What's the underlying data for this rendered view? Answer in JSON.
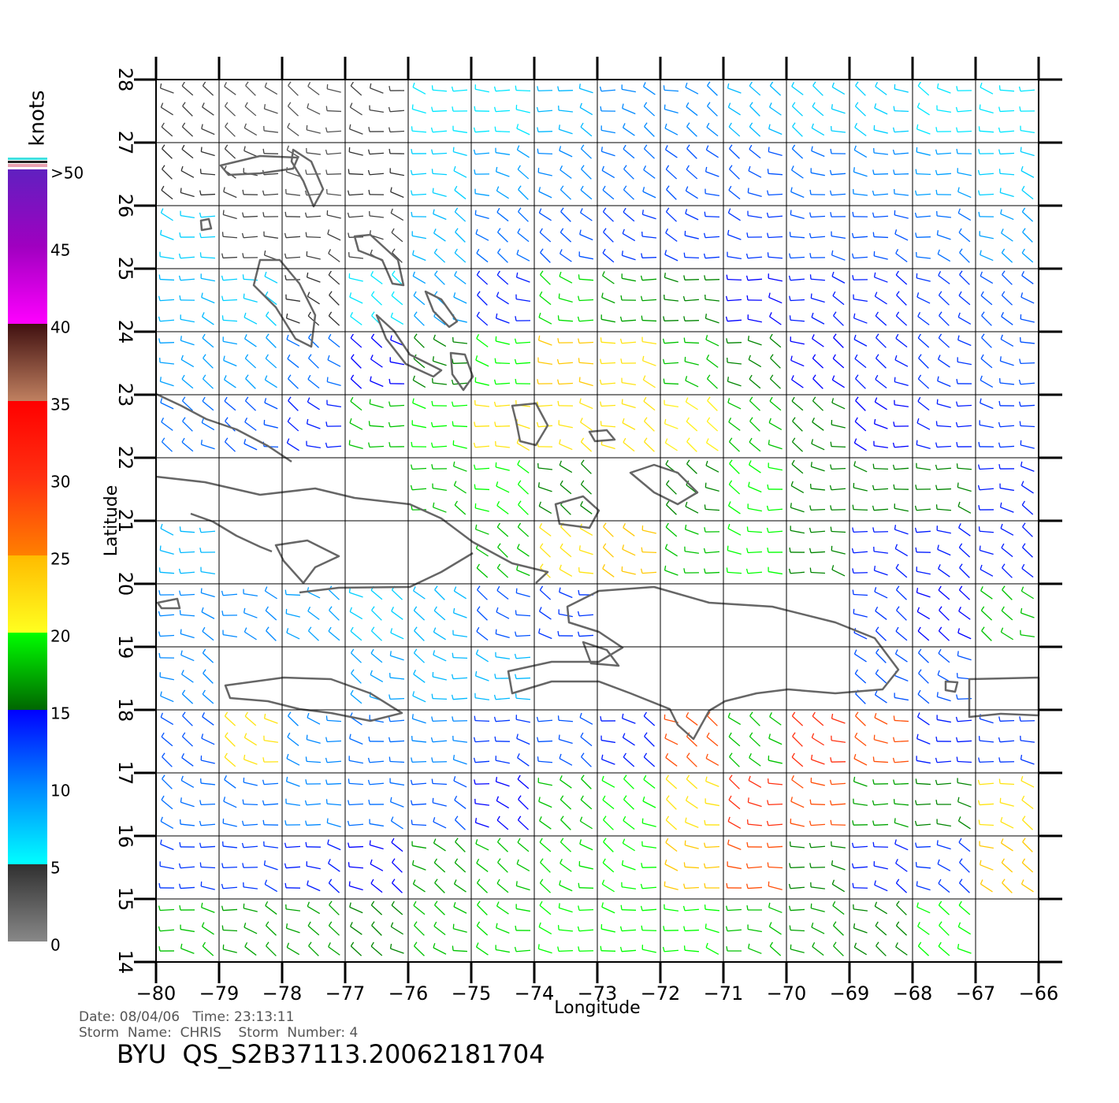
{
  "chart_data": {
    "type": "wind-map",
    "x_label": "Longitude",
    "y_label": "Latitude",
    "xlim": [
      -80,
      -66
    ],
    "ylim": [
      14,
      28
    ],
    "xticks": [
      {
        "value": -80,
        "label": "−80"
      },
      {
        "value": -79,
        "label": "−79"
      },
      {
        "value": -78,
        "label": "−78"
      },
      {
        "value": -77,
        "label": "−77"
      },
      {
        "value": -76,
        "label": "−76"
      },
      {
        "value": -75,
        "label": "−75"
      },
      {
        "value": -74,
        "label": "−74"
      },
      {
        "value": -73,
        "label": "−73"
      },
      {
        "value": -72,
        "label": "−72"
      },
      {
        "value": -71,
        "label": "−71"
      },
      {
        "value": -70,
        "label": "−70"
      },
      {
        "value": -69,
        "label": "−69"
      },
      {
        "value": -68,
        "label": "−68"
      },
      {
        "value": -67,
        "label": "−67"
      },
      {
        "value": -66,
        "label": "−66"
      }
    ],
    "yticks": [
      14,
      15,
      16,
      17,
      18,
      19,
      20,
      21,
      22,
      23,
      24,
      25,
      26,
      27,
      28
    ],
    "grid": true,
    "wind": {
      "lon": [
        -79.5,
        -78.5,
        -77.5,
        -76.5,
        -75.5,
        -74.5,
        -73.5,
        -72.5,
        -71.5,
        -70.5,
        -69.5,
        -68.5,
        -67.5,
        -66.5
      ],
      "lat": [
        27.5,
        26.5,
        25.5,
        24.5,
        23.5,
        22.5,
        21.5,
        20.5,
        19.5,
        18.5,
        17.5,
        16.5,
        15.5,
        14.5
      ],
      "speed": [
        [
          4,
          3,
          3,
          4,
          6,
          6,
          8,
          10,
          10,
          8,
          7,
          7,
          6,
          6
        ],
        [
          5,
          4,
          3,
          5,
          7,
          9,
          10,
          11,
          12,
          12,
          11,
          10,
          9,
          7
        ],
        [
          7,
          4,
          4,
          4,
          8,
          11,
          12,
          13,
          13,
          13,
          12,
          12,
          11,
          9
        ],
        [
          8,
          7,
          5,
          6,
          9,
          14,
          19,
          17,
          16,
          15,
          14,
          14,
          13,
          12
        ],
        [
          9,
          9,
          11,
          15,
          16,
          20,
          24,
          22,
          18,
          16,
          15,
          14,
          13,
          12
        ],
        [
          11,
          12,
          14,
          18,
          20,
          22,
          22,
          22,
          21,
          18,
          16,
          15,
          14,
          13
        ],
        [
          null,
          null,
          null,
          null,
          18,
          20,
          16,
          null,
          16,
          20,
          16,
          16,
          16,
          14
        ],
        [
          8,
          null,
          null,
          null,
          null,
          18,
          22,
          24,
          18,
          20,
          16,
          14,
          14,
          14
        ],
        [
          10,
          10,
          9,
          7,
          8,
          12,
          13,
          null,
          null,
          null,
          null,
          13,
          15,
          18
        ],
        [
          10,
          null,
          null,
          9,
          8,
          8,
          null,
          null,
          null,
          null,
          null,
          12,
          12,
          null
        ],
        [
          12,
          22,
          10,
          11,
          10,
          13,
          12,
          14,
          28,
          18,
          30,
          28,
          14,
          13
        ],
        [
          11,
          11,
          10,
          11,
          12,
          15,
          18,
          20,
          22,
          30,
          28,
          17,
          16,
          22
        ],
        [
          13,
          13,
          14,
          15,
          17,
          18,
          19,
          20,
          24,
          28,
          16,
          14,
          13,
          24
        ],
        [
          18,
          17,
          17,
          16,
          18,
          19,
          20,
          20,
          20,
          18,
          17,
          16,
          20,
          null
        ]
      ]
    },
    "colorbar": {
      "label": "knots",
      "lim": [
        0,
        50
      ],
      "ticks": [
        0,
        5,
        10,
        15,
        20,
        25,
        30,
        35,
        40,
        45,
        {
          "value": 50,
          "label": ">50"
        }
      ],
      "stops": [
        {
          "value": 0,
          "color": "#888888"
        },
        {
          "value": 5,
          "color": "#303030"
        },
        {
          "value": 5,
          "color": "#00ffff"
        },
        {
          "value": 10,
          "color": "#0088ff"
        },
        {
          "value": 15,
          "color": "#0000ff"
        },
        {
          "value": 15,
          "color": "#006600"
        },
        {
          "value": 20,
          "color": "#00ff00"
        },
        {
          "value": 20,
          "color": "#ffff20"
        },
        {
          "value": 25,
          "color": "#ffbb00"
        },
        {
          "value": 25,
          "color": "#ff8000"
        },
        {
          "value": 30,
          "color": "#ff3010"
        },
        {
          "value": 35,
          "color": "#ff0000"
        },
        {
          "value": 35,
          "color": "#c08060"
        },
        {
          "value": 40,
          "color": "#401010"
        },
        {
          "value": 40,
          "color": "#ff00ff"
        },
        {
          "value": 45,
          "color": "#a000c0"
        },
        {
          "value": 50,
          "color": "#6020c0"
        }
      ]
    },
    "footer": {
      "date_time": "Date: 08/04/06   Time: 23:13:11",
      "storm": "Storm  Name:  CHRIS    Storm  Number: 4",
      "file": "BYU  QS_S2B37113.20062181704"
    }
  }
}
